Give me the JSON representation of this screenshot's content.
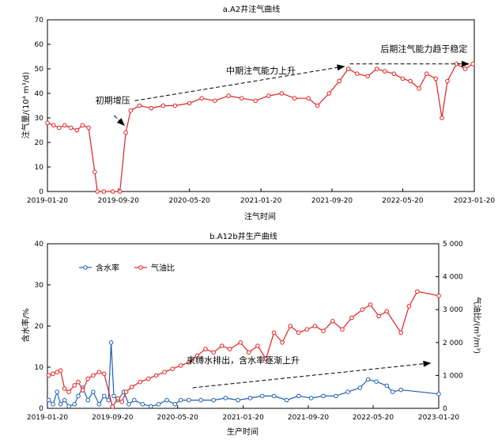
{
  "chart_data": [
    {
      "type": "line",
      "title": "a.A2井注气曲线",
      "xlabel": "注气时间",
      "ylabel": "注气量/(10⁴ m³/d)",
      "xlim": [
        "2019-01-20",
        "2023-01-20"
      ],
      "ylim": [
        0,
        70
      ],
      "x_ticks": [
        "2019-01-20",
        "2019-09-20",
        "2020-05-20",
        "2021-01-20",
        "2021-09-20",
        "2022-05-20",
        "2023-01-20"
      ],
      "y_ticks": [
        0,
        10,
        20,
        30,
        40,
        50,
        60,
        70
      ],
      "grid": false,
      "series": [
        {
          "color": "#e02020",
          "points": [
            [
              "2019-01-20",
              28
            ],
            [
              "2019-02-10",
              27
            ],
            [
              "2019-03-01",
              26
            ],
            [
              "2019-03-20",
              27
            ],
            [
              "2019-04-10",
              26
            ],
            [
              "2019-05-01",
              25
            ],
            [
              "2019-05-20",
              27
            ],
            [
              "2019-06-10",
              26
            ],
            [
              "2019-07-01",
              8
            ],
            [
              "2019-07-10",
              0
            ],
            [
              "2019-08-01",
              0
            ],
            [
              "2019-09-01",
              0
            ],
            [
              "2019-09-25",
              0
            ],
            [
              "2019-10-15",
              24
            ],
            [
              "2019-11-01",
              33
            ],
            [
              "2019-12-01",
              35
            ],
            [
              "2020-01-10",
              34
            ],
            [
              "2020-02-20",
              35
            ],
            [
              "2020-04-01",
              35
            ],
            [
              "2020-05-20",
              36
            ],
            [
              "2020-07-01",
              38
            ],
            [
              "2020-08-15",
              37
            ],
            [
              "2020-10-01",
              39
            ],
            [
              "2020-11-15",
              38
            ],
            [
              "2021-01-01",
              37
            ],
            [
              "2021-02-15",
              39
            ],
            [
              "2021-04-01",
              40
            ],
            [
              "2021-05-15",
              38
            ],
            [
              "2021-07-01",
              38
            ],
            [
              "2021-08-01",
              35
            ],
            [
              "2021-09-10",
              40
            ],
            [
              "2021-10-15",
              45
            ],
            [
              "2021-11-15",
              50
            ],
            [
              "2021-12-15",
              48
            ],
            [
              "2022-01-20",
              47
            ],
            [
              "2022-02-20",
              50
            ],
            [
              "2022-03-20",
              49
            ],
            [
              "2022-04-20",
              48
            ],
            [
              "2022-05-20",
              46
            ],
            [
              "2022-06-15",
              45
            ],
            [
              "2022-07-15",
              42
            ],
            [
              "2022-08-10",
              48
            ],
            [
              "2022-09-10",
              46
            ],
            [
              "2022-10-01",
              30
            ],
            [
              "2022-10-20",
              45
            ],
            [
              "2022-11-20",
              52
            ],
            [
              "2022-12-20",
              50
            ],
            [
              "2023-01-15",
              52
            ]
          ]
        }
      ],
      "annotations": [
        {
          "text": "初期增压",
          "x": "2019-09-01",
          "y": 36
        },
        {
          "text": "中期注气能力上升",
          "x": "2021-01-20",
          "y": 48
        },
        {
          "text": "后期注气能力趋于稳定",
          "x": "2022-08-01",
          "y": 57
        }
      ],
      "trend_lines": [
        {
          "from": [
            "2019-11-15",
            37
          ],
          "to": [
            "2021-11-01",
            51
          ]
        },
        {
          "from": [
            "2021-11-20",
            52
          ],
          "to": [
            "2023-01-01",
            52
          ]
        },
        {
          "from": [
            "2019-09-05",
            31
          ],
          "to": [
            "2019-10-10",
            27
          ]
        }
      ]
    },
    {
      "type": "line",
      "title": "b.A12b井生产曲线",
      "xlabel": "生产时间",
      "ylabel": "含水率/%",
      "y2label": "气油比/(m³/m³)",
      "xlim": [
        "2019-01-20",
        "2023-01-20"
      ],
      "ylim": [
        0,
        40
      ],
      "y2lim": [
        0,
        5000
      ],
      "x_ticks": [
        "2019-01-20",
        "2019-09-20",
        "2020-05-20",
        "2021-01-20",
        "2021-09-20",
        "2022-05-20",
        "2023-01-20"
      ],
      "y_ticks": [
        0,
        10,
        20,
        30,
        40
      ],
      "y2_ticks": [
        "0",
        "1 000",
        "2 000",
        "3 000",
        "4 000",
        "5 000"
      ],
      "y2_tick_values": [
        0,
        1000,
        2000,
        3000,
        4000,
        5000
      ],
      "legend": "top-left",
      "grid": false,
      "series": [
        {
          "name": "含水率",
          "axis": "left",
          "color": "#1f5fb4",
          "points": [
            [
              "2019-01-25",
              2
            ],
            [
              "2019-02-10",
              1
            ],
            [
              "2019-02-25",
              4
            ],
            [
              "2019-03-10",
              1
            ],
            [
              "2019-03-25",
              2
            ],
            [
              "2019-04-10",
              0.5
            ],
            [
              "2019-05-01",
              1
            ],
            [
              "2019-05-15",
              3
            ],
            [
              "2019-06-01",
              5
            ],
            [
              "2019-06-20",
              2
            ],
            [
              "2019-07-10",
              4
            ],
            [
              "2019-08-01",
              1
            ],
            [
              "2019-08-20",
              3
            ],
            [
              "2019-09-05",
              2
            ],
            [
              "2019-09-15",
              16
            ],
            [
              "2019-09-25",
              3
            ],
            [
              "2019-10-10",
              2
            ],
            [
              "2019-11-01",
              4
            ],
            [
              "2019-11-20",
              1
            ],
            [
              "2019-12-10",
              2
            ],
            [
              "2020-01-10",
              1
            ],
            [
              "2020-02-10",
              0.5
            ],
            [
              "2020-03-10",
              1
            ],
            [
              "2020-04-10",
              2
            ],
            [
              "2020-05-10",
              1
            ],
            [
              "2020-06-01",
              2
            ],
            [
              "2020-07-01",
              2
            ],
            [
              "2020-08-15",
              2
            ],
            [
              "2020-10-01",
              2
            ],
            [
              "2020-11-15",
              2.5
            ],
            [
              "2021-01-01",
              2
            ],
            [
              "2021-02-15",
              2.5
            ],
            [
              "2021-04-01",
              3
            ],
            [
              "2021-05-15",
              3
            ],
            [
              "2021-07-01",
              2
            ],
            [
              "2021-08-15",
              3
            ],
            [
              "2021-10-01",
              2.5
            ],
            [
              "2021-11-15",
              3
            ],
            [
              "2022-01-01",
              3
            ],
            [
              "2022-02-15",
              4
            ],
            [
              "2022-04-01",
              5
            ],
            [
              "2022-05-01",
              7
            ],
            [
              "2022-06-01",
              6.5
            ],
            [
              "2022-07-10",
              5.5
            ],
            [
              "2022-08-01",
              4
            ],
            [
              "2022-09-01",
              4.5
            ],
            [
              "2023-01-20",
              3.5
            ]
          ]
        },
        {
          "name": "气油比",
          "axis": "right",
          "color": "#e02020",
          "points": [
            [
              "2019-01-25",
              1000
            ],
            [
              "2019-02-10",
              1050
            ],
            [
              "2019-02-25",
              1100
            ],
            [
              "2019-03-10",
              1150
            ],
            [
              "2019-03-25",
              600
            ],
            [
              "2019-04-10",
              500
            ],
            [
              "2019-05-01",
              700
            ],
            [
              "2019-05-15",
              800
            ],
            [
              "2019-06-01",
              550
            ],
            [
              "2019-06-20",
              900
            ],
            [
              "2019-07-10",
              1000
            ],
            [
              "2019-08-01",
              1100
            ],
            [
              "2019-08-20",
              1050
            ],
            [
              "2019-09-20",
              50
            ],
            [
              "2019-10-10",
              300
            ],
            [
              "2019-10-25",
              200
            ],
            [
              "2019-11-10",
              500
            ],
            [
              "2019-12-01",
              650
            ],
            [
              "2020-01-01",
              800
            ],
            [
              "2020-02-01",
              900
            ],
            [
              "2020-03-01",
              1000
            ],
            [
              "2020-04-01",
              1100
            ],
            [
              "2020-05-01",
              1200
            ],
            [
              "2020-06-01",
              1300
            ],
            [
              "2020-07-01",
              1400
            ],
            [
              "2020-08-01",
              1600
            ],
            [
              "2020-09-01",
              1800
            ],
            [
              "2020-10-01",
              1700
            ],
            [
              "2020-11-01",
              1900
            ],
            [
              "2020-12-01",
              1800
            ],
            [
              "2021-01-10",
              2000
            ],
            [
              "2021-02-10",
              1700
            ],
            [
              "2021-03-15",
              1900
            ],
            [
              "2021-04-15",
              1500
            ],
            [
              "2021-05-15",
              2300
            ],
            [
              "2021-06-15",
              2000
            ],
            [
              "2021-07-15",
              2500
            ],
            [
              "2021-08-15",
              2300
            ],
            [
              "2021-09-15",
              2400
            ],
            [
              "2021-10-15",
              2500
            ],
            [
              "2021-11-15",
              2350
            ],
            [
              "2021-12-20",
              2650
            ],
            [
              "2022-01-25",
              2400
            ],
            [
              "2022-03-01",
              2750
            ],
            [
              "2022-04-10",
              3000
            ],
            [
              "2022-05-10",
              3150
            ],
            [
              "2022-06-10",
              2800
            ],
            [
              "2022-07-10",
              2950
            ],
            [
              "2022-09-01",
              2300
            ],
            [
              "2022-10-01",
              3100
            ],
            [
              "2022-11-01",
              3550
            ],
            [
              "2023-01-20",
              3420
            ]
          ]
        }
      ],
      "annotations": [
        {
          "text": "束缚水排出，含水率逐渐上升",
          "x": "2021-01-20",
          "y": 11
        }
      ],
      "trend_lines": [
        {
          "from": [
            "2020-07-15",
            5
          ],
          "to": [
            "2022-12-20",
            11
          ]
        }
      ]
    }
  ]
}
